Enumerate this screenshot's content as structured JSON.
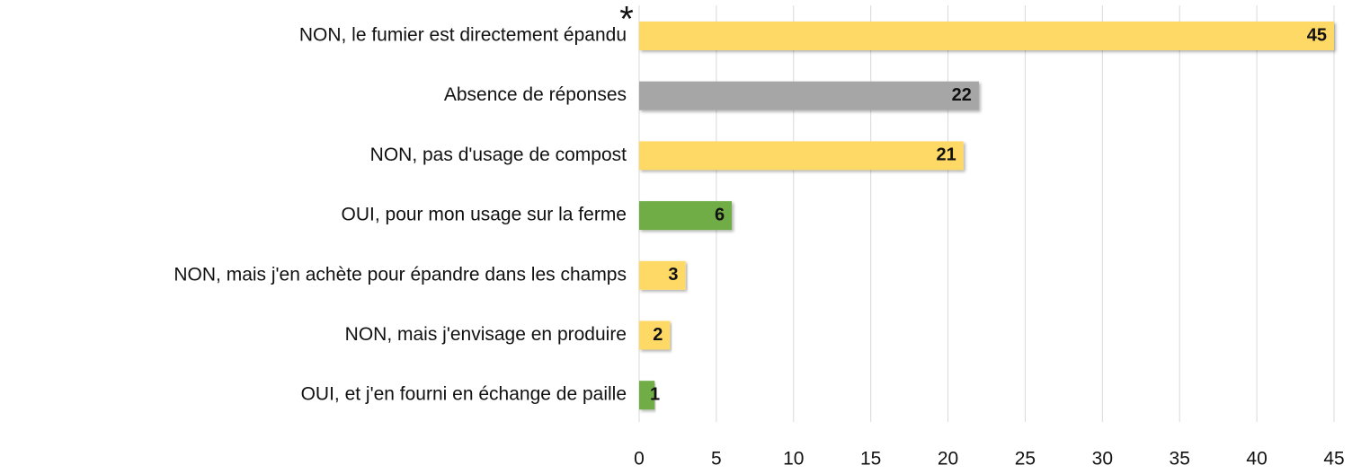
{
  "chart_data": {
    "type": "barh",
    "categories": [
      "NON, le fumier est directement épandu",
      "Absence de réponses",
      "NON, pas d'usage de compost",
      "OUI, pour mon usage sur la ferme",
      "NON, mais j'en achète pour épandre dans les champs",
      "NON, mais j'envisage en produire",
      "OUI, et j'en fourni en échange de paille"
    ],
    "values": [
      45,
      22,
      21,
      6,
      3,
      2,
      1
    ],
    "colors": [
      "#ffd966",
      "#a6a6a6",
      "#ffd966",
      "#70ad47",
      "#ffd966",
      "#ffd966",
      "#70ad47"
    ],
    "annotation": "*",
    "xlim": [
      0,
      45
    ],
    "xticks": [
      0,
      5,
      10,
      15,
      20,
      25,
      30,
      35,
      40,
      45
    ],
    "grid": true
  }
}
